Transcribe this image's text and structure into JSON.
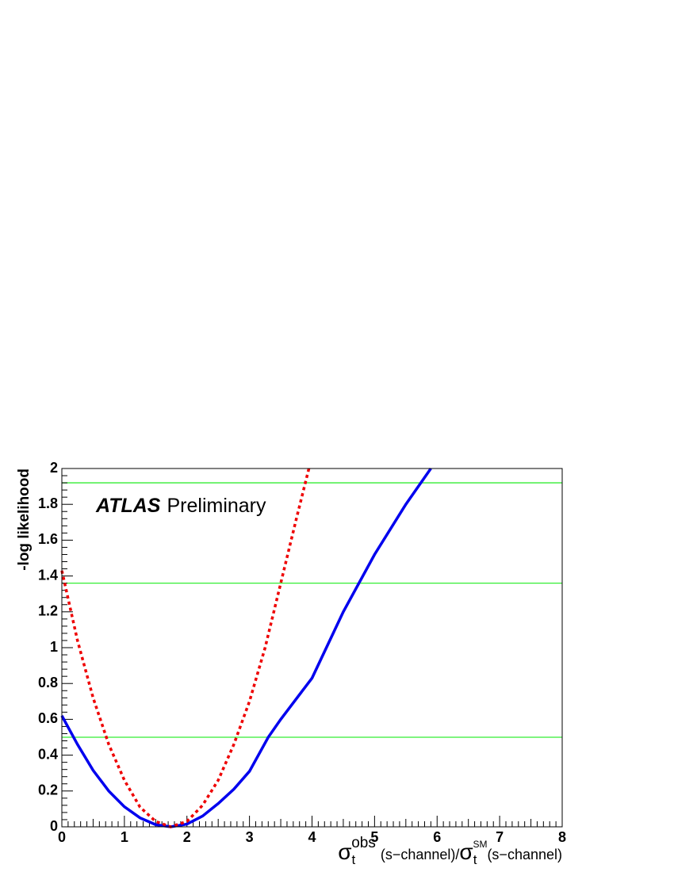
{
  "chart_data": {
    "type": "line",
    "ylabel": "-log likelihood",
    "xlabel_parts": [
      "σ",
      "t",
      "obs",
      "(s−channel)/",
      "σ",
      "t",
      "SM",
      "(s−channel)"
    ],
    "annotations": [
      "ATLAS",
      "Preliminary"
    ],
    "xlim": [
      0,
      8
    ],
    "xticks": [
      0,
      1,
      2,
      3,
      4,
      5,
      6,
      7,
      8
    ],
    "ylim": [
      0,
      2
    ],
    "yticks": [
      0,
      0.2,
      0.4,
      0.6,
      0.8,
      1,
      1.2,
      1.4,
      1.6,
      1.8,
      2
    ],
    "hlines": [
      0.5,
      1.36,
      1.92
    ],
    "hline_color": "#33ee33",
    "series": [
      {
        "color": "#0000ee",
        "dashed": false,
        "x": [
          0,
          0.25,
          0.5,
          0.75,
          1,
          1.25,
          1.5,
          1.74,
          2,
          2.25,
          2.5,
          2.75,
          3,
          3.3,
          3.5,
          4,
          4.5,
          5,
          5.5,
          5.9
        ],
        "values": [
          0.62,
          0.46,
          0.315,
          0.2,
          0.112,
          0.05,
          0.012,
          0,
          0.015,
          0.06,
          0.13,
          0.21,
          0.31,
          0.5,
          0.6,
          0.83,
          1.2,
          1.52,
          1.8,
          2.0
        ]
      },
      {
        "color": "#ee0000",
        "dashed": true,
        "x": [
          0,
          0.25,
          0.5,
          0.75,
          1,
          1.25,
          1.5,
          1.74,
          2,
          2.25,
          2.5,
          2.75,
          3,
          3.25,
          3.5,
          3.75,
          3.95
        ],
        "values": [
          1.43,
          1.04,
          0.72,
          0.46,
          0.26,
          0.11,
          0.03,
          0,
          0.03,
          0.12,
          0.26,
          0.46,
          0.7,
          1.0,
          1.36,
          1.72,
          2.0
        ]
      }
    ]
  }
}
